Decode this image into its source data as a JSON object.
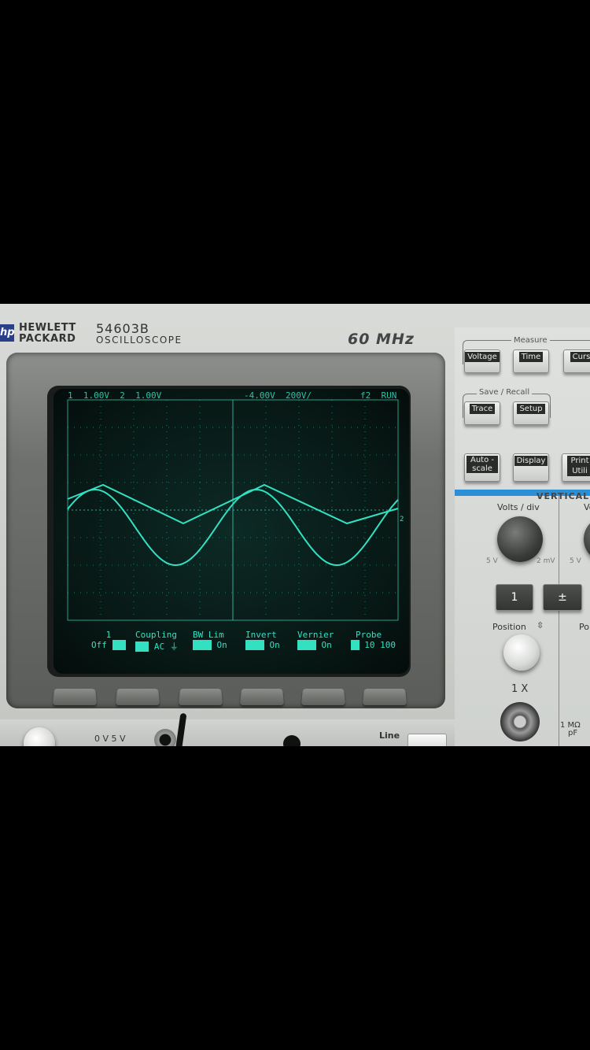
{
  "header": {
    "brand_line1": "HEWLETT",
    "brand_line2": "PACKARD",
    "model": "54603B",
    "type": "OSCILLOSCOPE",
    "bandwidth": "60 MHz"
  },
  "screen": {
    "status_left": "1  1.00V  2  1.00V",
    "status_mid": "-4.00V  200V/",
    "status_right": "f2  RUN",
    "channel_marker": "2",
    "softkeys": [
      {
        "title": "1",
        "value": "Off"
      },
      {
        "title": "Coupling",
        "value": "AC"
      },
      {
        "title": "BW Lim",
        "value": "On"
      },
      {
        "title": "Invert",
        "value": "On"
      },
      {
        "title": "Vernier",
        "value": "On"
      },
      {
        "title": "Probe",
        "value": "10  100"
      }
    ],
    "trace_color": "#33e0c2"
  },
  "panel": {
    "measure_title": "Measure",
    "measure_buttons": [
      "Voltage",
      "Time",
      "Curs"
    ],
    "save_title": "Save / Recall",
    "save_buttons": [
      "Trace",
      "Setup"
    ],
    "misc_buttons": [
      "Auto - scale",
      "Display",
      "Print Utili"
    ],
    "vertical_title": "VERTICAL",
    "volts_div": "Volts / div",
    "volts_div2": "Ve",
    "scale_left": "5 V",
    "scale_right": "2 mV",
    "scale_right2": "5 V",
    "ch_button": "1",
    "plusminus_button": "±",
    "position": "Position",
    "position2": "Po",
    "input_label": "1 X",
    "impedance": "1 MΩ",
    "impedance2": "pF"
  },
  "bottom": {
    "cal_label": "0 V  5 V",
    "line_label": "Line"
  }
}
